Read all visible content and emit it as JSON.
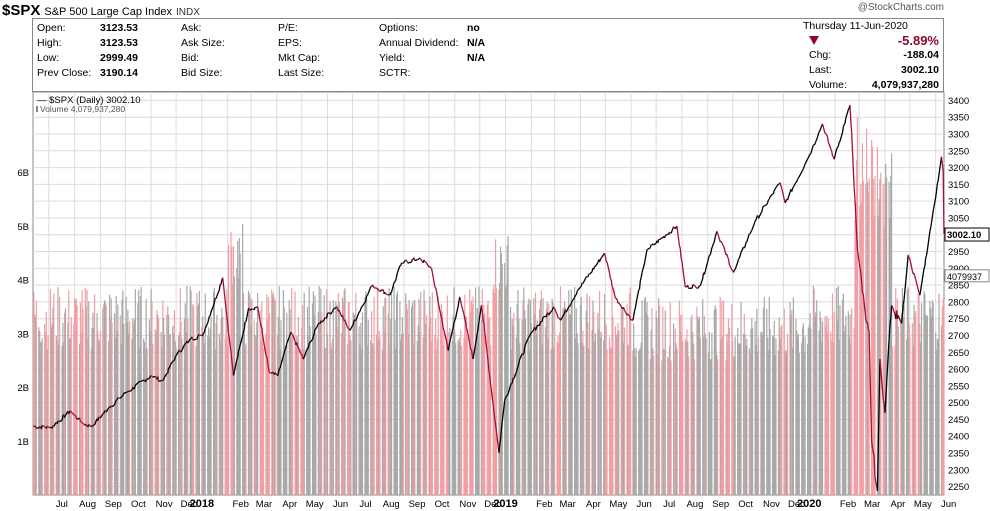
{
  "header": {
    "symbol": "$SPX",
    "name": "S&P 500 Large Cap Index",
    "exchange": "INDX",
    "brand": "@StockCharts.com",
    "date": "Thursday  11-Jun-2020"
  },
  "quote": {
    "col1": [
      {
        "label": "Open:",
        "value": "3123.53"
      },
      {
        "label": "High:",
        "value": "3123.53"
      },
      {
        "label": "Low:",
        "value": "2999.49"
      },
      {
        "label": "Prev Close:",
        "value": "3190.14"
      }
    ],
    "col2": [
      {
        "label": "Ask:",
        "value": ""
      },
      {
        "label": "Ask Size:",
        "value": ""
      },
      {
        "label": "Bid:",
        "value": ""
      },
      {
        "label": "Bid Size:",
        "value": ""
      }
    ],
    "col3": [
      {
        "label": "P/E:",
        "value": ""
      },
      {
        "label": "EPS:",
        "value": ""
      },
      {
        "label": "Mkt Cap:",
        "value": ""
      },
      {
        "label": "Last Size:",
        "value": ""
      }
    ],
    "col4": [
      {
        "label": "Options:",
        "value": "no"
      },
      {
        "label": "Annual Dividend:",
        "value": "N/A"
      },
      {
        "label": "Yield:",
        "value": "N/A"
      },
      {
        "label": "SCTR:",
        "value": ""
      }
    ],
    "pct_change": "-5.89%",
    "chg_label": "Chg:",
    "chg_value": "-188.04",
    "last_label": "Last:",
    "last_value": "3002.10",
    "volume_label": "Volume:",
    "volume_value": "4,079,937,280"
  },
  "colors": {
    "up": "#000000",
    "down": "#a50d35",
    "vol_up": "#a9a9a9",
    "vol_down": "#f0a0a5",
    "grid": "#dcdcdc"
  },
  "chart_data": {
    "type": "line",
    "legend": [
      "— $SPX (Daily) 3002.10",
      "Volume 4,079,937,280"
    ],
    "price_axis": {
      "ylim": [
        2225,
        3425
      ],
      "ticks": [
        2250,
        2300,
        2350,
        2400,
        2450,
        2500,
        2550,
        2600,
        2650,
        2700,
        2750,
        2800,
        2850,
        2900,
        2950,
        3000,
        3050,
        3100,
        3150,
        3200,
        3250,
        3300,
        3350,
        3400
      ],
      "last_label": "3002.10"
    },
    "volume_axis": {
      "ticks": [
        "1B",
        "2B",
        "3B",
        "4B",
        "5B",
        "6B"
      ],
      "tick_values": [
        1,
        2,
        3,
        4,
        5,
        6
      ],
      "ylim": [
        0,
        7.5
      ],
      "last_label": "4079937"
    },
    "x_ticks": [
      "Jul",
      "Aug",
      "Sep",
      "Oct",
      "Nov",
      "Dec",
      "2018",
      "Feb",
      "Mar",
      "Apr",
      "May",
      "Jun",
      "Jul",
      "Aug",
      "Sep",
      "Oct",
      "Nov",
      "Dec",
      "2019",
      "Feb",
      "Mar",
      "Apr",
      "May",
      "Jun",
      "Jul",
      "Aug",
      "Sep",
      "Oct",
      "Nov",
      "Dec",
      "2020",
      "Feb",
      "Mar",
      "Apr",
      "May",
      "Jun"
    ],
    "x_bold": [
      "2018",
      "2019",
      "2020"
    ],
    "x_range": [
      "2017-06-12",
      "2020-06-11"
    ],
    "price_series": [
      [
        "2017-06-12",
        2430
      ],
      [
        "2017-07-03",
        2425
      ],
      [
        "2017-07-27",
        2475
      ],
      [
        "2017-08-10",
        2440
      ],
      [
        "2017-08-21",
        2428
      ],
      [
        "2017-09-11",
        2485
      ],
      [
        "2017-10-02",
        2530
      ],
      [
        "2017-11-01",
        2580
      ],
      [
        "2017-11-15",
        2565
      ],
      [
        "2017-12-01",
        2640
      ],
      [
        "2017-12-18",
        2690
      ],
      [
        "2018-01-02",
        2700
      ],
      [
        "2018-01-26",
        2872
      ],
      [
        "2018-02-08",
        2581
      ],
      [
        "2018-02-26",
        2780
      ],
      [
        "2018-03-09",
        2785
      ],
      [
        "2018-03-23",
        2590
      ],
      [
        "2018-04-02",
        2580
      ],
      [
        "2018-04-18",
        2710
      ],
      [
        "2018-05-03",
        2630
      ],
      [
        "2018-05-21",
        2735
      ],
      [
        "2018-06-12",
        2785
      ],
      [
        "2018-06-28",
        2715
      ],
      [
        "2018-07-25",
        2850
      ],
      [
        "2018-08-15",
        2820
      ],
      [
        "2018-08-29",
        2915
      ],
      [
        "2018-09-20",
        2930
      ],
      [
        "2018-10-04",
        2900
      ],
      [
        "2018-10-24",
        2655
      ],
      [
        "2018-11-07",
        2815
      ],
      [
        "2018-11-23",
        2630
      ],
      [
        "2018-12-03",
        2790
      ],
      [
        "2018-12-24",
        2351
      ],
      [
        "2018-12-31",
        2507
      ],
      [
        "2019-01-31",
        2705
      ],
      [
        "2019-02-28",
        2785
      ],
      [
        "2019-03-08",
        2745
      ],
      [
        "2019-03-29",
        2835
      ],
      [
        "2019-04-30",
        2945
      ],
      [
        "2019-05-13",
        2812
      ],
      [
        "2019-06-03",
        2745
      ],
      [
        "2019-06-20",
        2955
      ],
      [
        "2019-07-26",
        3025
      ],
      [
        "2019-08-05",
        2845
      ],
      [
        "2019-08-23",
        2848
      ],
      [
        "2019-09-12",
        3010
      ],
      [
        "2019-10-02",
        2888
      ],
      [
        "2019-10-28",
        3040
      ],
      [
        "2019-11-27",
        3155
      ],
      [
        "2019-12-03",
        3095
      ],
      [
        "2019-12-31",
        3230
      ],
      [
        "2020-01-17",
        3330
      ],
      [
        "2020-01-31",
        3225
      ],
      [
        "2020-02-19",
        3386
      ],
      [
        "2020-02-28",
        2954
      ],
      [
        "2020-03-09",
        2747
      ],
      [
        "2020-03-13",
        2711
      ],
      [
        "2020-03-16",
        2386
      ],
      [
        "2020-03-23",
        2237
      ],
      [
        "2020-03-26",
        2630
      ],
      [
        "2020-04-01",
        2470
      ],
      [
        "2020-04-09",
        2790
      ],
      [
        "2020-04-21",
        2736
      ],
      [
        "2020-04-29",
        2940
      ],
      [
        "2020-05-13",
        2820
      ],
      [
        "2020-05-27",
        3036
      ],
      [
        "2020-06-08",
        3232
      ],
      [
        "2020-06-10",
        3190
      ],
      [
        "2020-06-11",
        3002
      ]
    ]
  }
}
